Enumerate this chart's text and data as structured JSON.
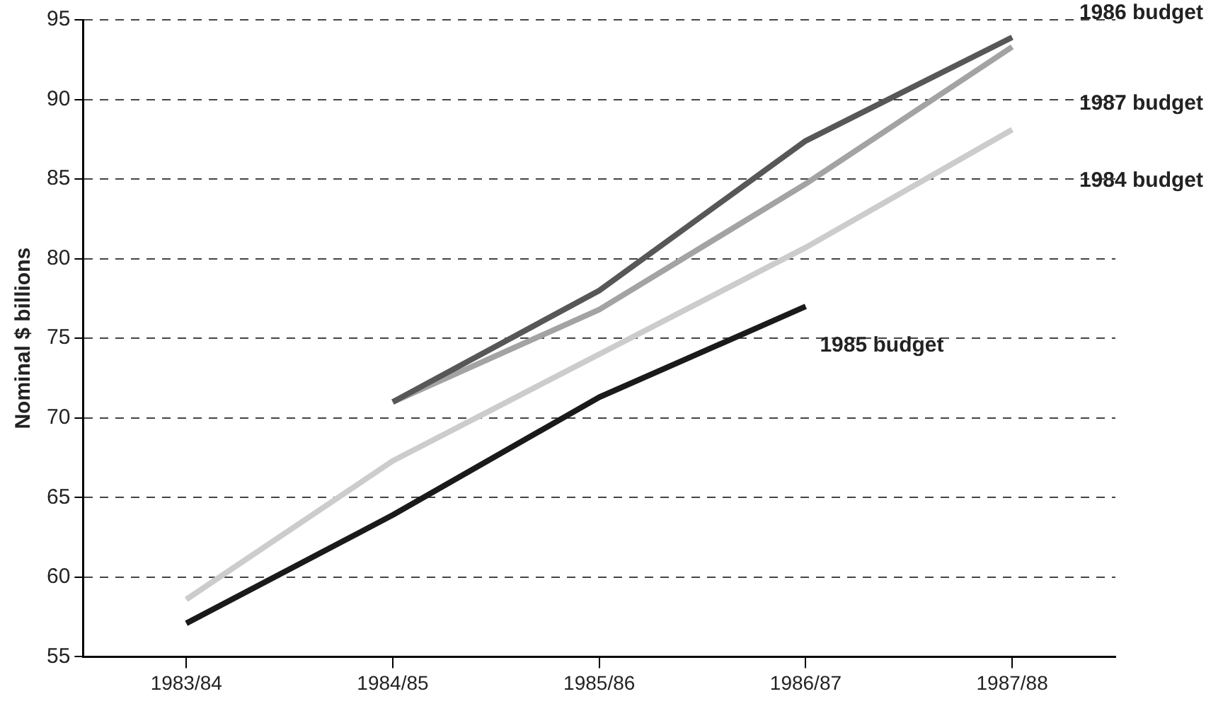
{
  "chart_data": {
    "type": "line",
    "ylabel": "Nominal $ billions",
    "categories": [
      "1983/84",
      "1984/85",
      "1985/86",
      "1986/87",
      "1987/88"
    ],
    "series": [
      {
        "name": "1984 budget",
        "color": "#cccccc",
        "values": [
          58.6,
          67.3,
          74.0,
          80.7,
          88.1
        ]
      },
      {
        "name": "1985 budget",
        "color": "#1a1a1a",
        "values": [
          57.1,
          63.9,
          71.3,
          77.0,
          null
        ]
      },
      {
        "name": "1986 budget",
        "color": "#575757",
        "values": [
          null,
          71.0,
          78.0,
          87.4,
          93.9
        ]
      },
      {
        "name": "1987 budget",
        "color": "#a3a3a3",
        "values": [
          null,
          71.0,
          76.8,
          84.7,
          93.3
        ]
      }
    ],
    "ylim": [
      55,
      95
    ],
    "yticks": [
      55,
      60,
      65,
      70,
      75,
      80,
      85,
      90,
      95
    ],
    "grid": "y",
    "legend": false,
    "marker": "none",
    "line_style": "solid"
  }
}
